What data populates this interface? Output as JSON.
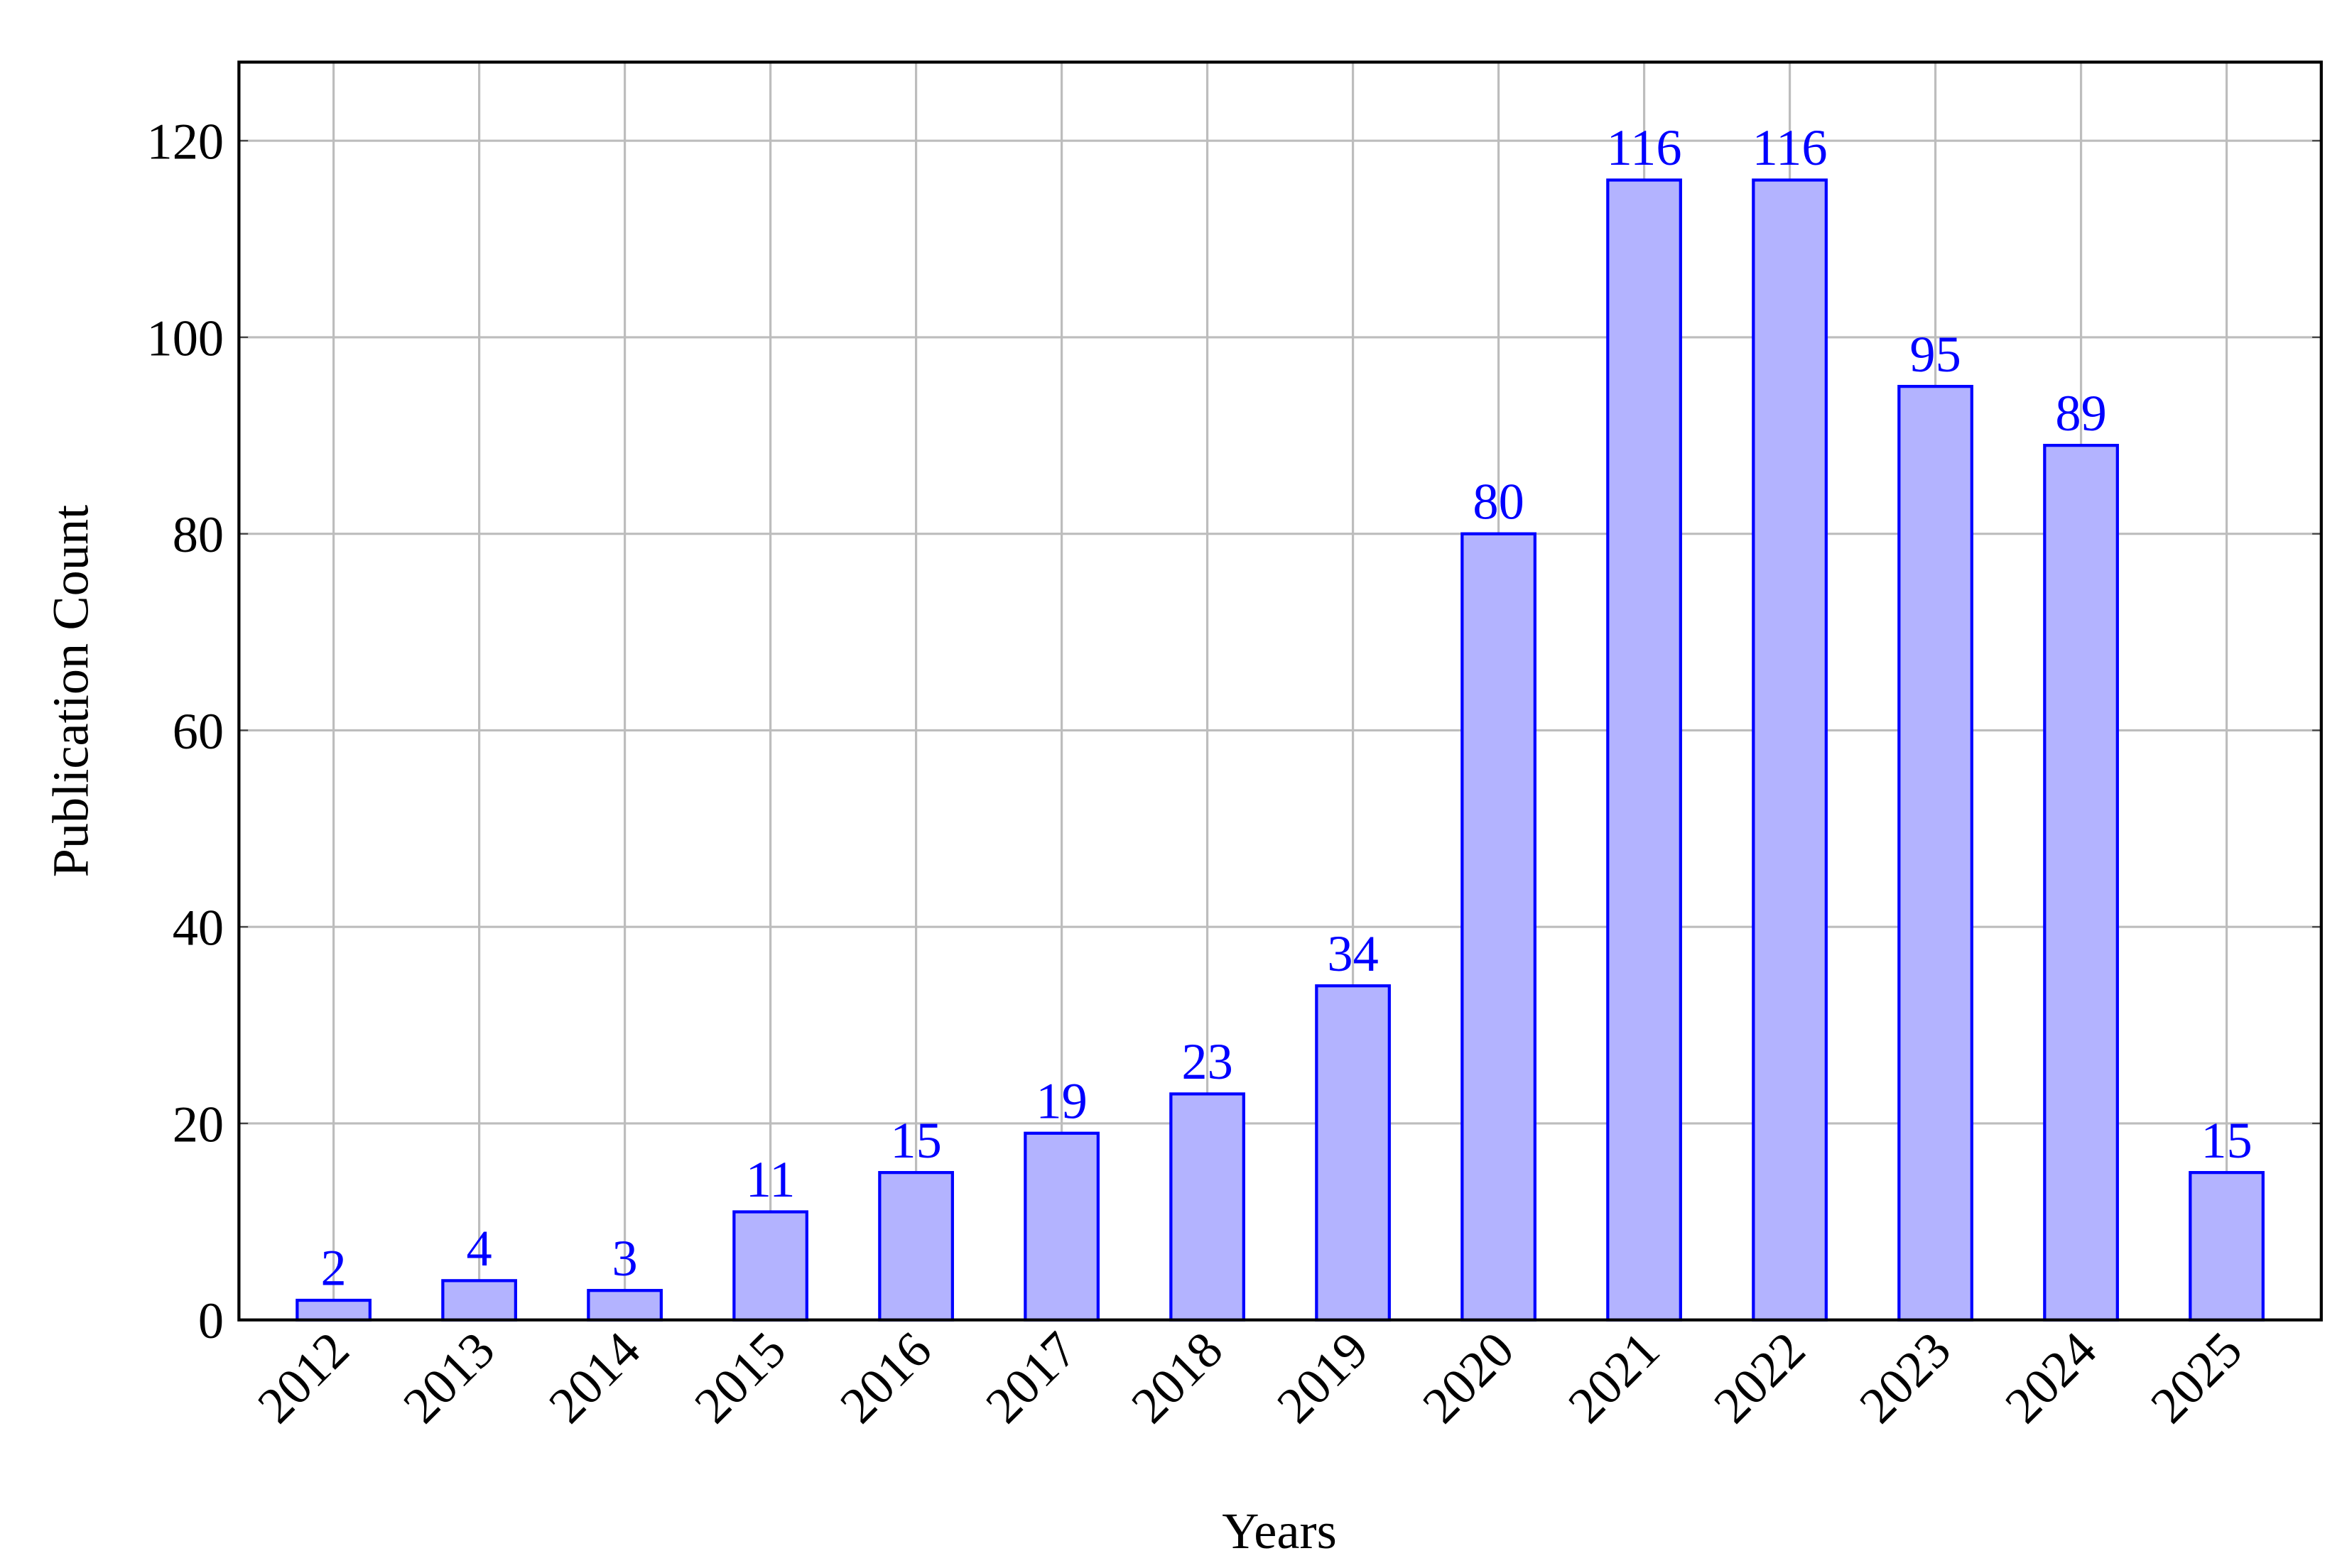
{
  "chart_data": {
    "type": "bar",
    "x_label": "Years",
    "y_label": "Publication Count",
    "categories": [
      "2012",
      "2013",
      "2014",
      "2015",
      "2016",
      "2017",
      "2018",
      "2019",
      "2020",
      "2021",
      "2022",
      "2023",
      "2024",
      "2025"
    ],
    "values": [
      2,
      4,
      3,
      11,
      15,
      19,
      23,
      34,
      80,
      116,
      116,
      95,
      89,
      15
    ],
    "color": "#b3b3ff",
    "edge_color": "#0000ff",
    "ylim": [
      0,
      128
    ],
    "yticks": [
      0,
      20,
      40,
      60,
      80,
      100,
      120
    ],
    "grid": true
  }
}
